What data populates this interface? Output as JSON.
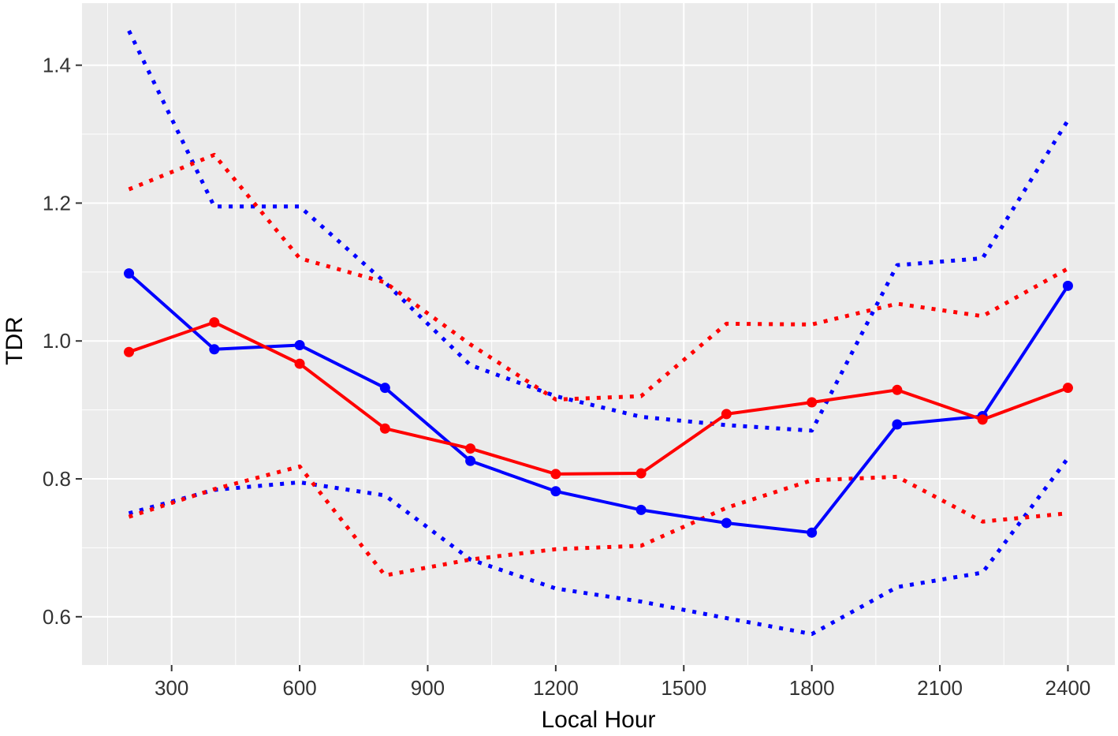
{
  "chart_data": {
    "type": "line",
    "title": "",
    "xlabel": "Local Hour",
    "ylabel": "TDR",
    "xlim": [
      90,
      2510
    ],
    "ylim": [
      0.53,
      1.49
    ],
    "x_ticks": [
      300,
      600,
      900,
      1200,
      1500,
      1800,
      2100,
      2400
    ],
    "x_tick_labels": [
      "300",
      "600",
      "900",
      "1200",
      "1500",
      "1800",
      "2100",
      "2400"
    ],
    "y_ticks": [
      0.6,
      0.8,
      1.0,
      1.2,
      1.4
    ],
    "y_tick_labels": [
      "0.6",
      "0.8",
      "1.0",
      "1.2",
      "1.4"
    ],
    "grid": true,
    "legend": "none",
    "background_color": "#EBEBEB",
    "grid_color": "#FFFFFF",
    "x": [
      200,
      400,
      600,
      800,
      1000,
      1200,
      1400,
      1600,
      1800,
      2000,
      2200,
      2400
    ],
    "series": [
      {
        "color": "#0000FF",
        "style": "solid",
        "markers": true,
        "values": [
          1.098,
          0.988,
          0.994,
          0.932,
          0.826,
          0.782,
          0.755,
          0.736,
          0.722,
          0.879,
          0.891,
          1.08
        ]
      },
      {
        "color": "#FF0000",
        "style": "solid",
        "markers": true,
        "values": [
          0.984,
          1.027,
          0.967,
          0.873,
          0.844,
          0.807,
          0.808,
          0.894,
          0.911,
          0.929,
          0.886,
          0.932
        ]
      },
      {
        "color": "#0000FF",
        "style": "dotted",
        "markers": false,
        "values": [
          1.45,
          1.195,
          1.195,
          1.085,
          0.965,
          0.92,
          0.89,
          0.878,
          0.87,
          1.11,
          1.12,
          1.32
        ]
      },
      {
        "color": "#0000FF",
        "style": "dotted",
        "markers": false,
        "values": [
          0.75,
          0.784,
          0.795,
          0.776,
          0.683,
          0.641,
          0.622,
          0.598,
          0.575,
          0.643,
          0.664,
          0.83
        ]
      },
      {
        "color": "#FF0000",
        "style": "dotted",
        "markers": false,
        "values": [
          1.22,
          1.27,
          1.12,
          1.085,
          0.995,
          0.915,
          0.92,
          1.025,
          1.024,
          1.054,
          1.036,
          1.105
        ]
      },
      {
        "color": "#FF0000",
        "style": "dotted",
        "markers": false,
        "values": [
          0.745,
          0.785,
          0.818,
          0.66,
          0.683,
          0.698,
          0.703,
          0.758,
          0.798,
          0.803,
          0.738,
          0.75
        ]
      }
    ]
  }
}
